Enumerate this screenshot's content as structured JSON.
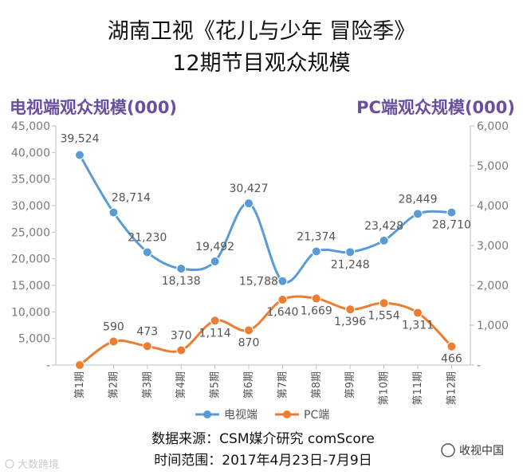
{
  "title_line1": "湖南卫视《花儿与少年 冒险季》",
  "title_line2": "12期节目观众规模",
  "source_line1": "数据来源：CSM媒介研究 comScore",
  "source_line2": "时间范围：2017年4月23日-7月9日",
  "watermark_right": "收视中国",
  "watermark_left": "大数跨境",
  "colors": {
    "tv": "#5b9bd5",
    "pc": "#ed7d31",
    "highlight": "#c00000",
    "axis_title": "#6b4f9e",
    "axis": "#bfbfbf"
  },
  "chart_data": {
    "type": "line",
    "categories": [
      "第1期",
      "第2期",
      "第3期",
      "第4期",
      "第5期",
      "第6期",
      "第7期",
      "第8期",
      "第9期",
      "第10期",
      "第11期",
      "第12期"
    ],
    "series": [
      {
        "name": "电视端",
        "axis": "left",
        "values": [
          39524,
          28714,
          21230,
          18138,
          19492,
          30427,
          15788,
          21374,
          21248,
          23428,
          28449,
          28710
        ],
        "labels": [
          "39,524",
          "28,714",
          "21,230",
          "18,138",
          "19,492",
          "30,427",
          "15,788",
          "21,374",
          "21,248",
          "23,428",
          "28,449",
          "28,710"
        ]
      },
      {
        "name": "PC端",
        "axis": "right",
        "values": [
          0,
          590,
          473,
          370,
          1114,
          870,
          1640,
          1669,
          1396,
          1554,
          1311,
          466
        ],
        "labels": [
          "",
          "590",
          "473",
          "370",
          "1,114",
          "870",
          "1,640",
          "1,669",
          "1,396",
          "1,554",
          "1,311",
          "466"
        ]
      }
    ],
    "y_left": {
      "label": "电视端观众规模(000)",
      "range": [
        0,
        45000
      ],
      "ticks": [
        "-",
        "5,000",
        "10,000",
        "15,000",
        "20,000",
        "25,000",
        "30,000",
        "35,000",
        "40,000",
        "45,000"
      ]
    },
    "y_right": {
      "label": "PC端观众规模(000)",
      "range": [
        0,
        6000
      ],
      "ticks": [
        "-",
        "1,000",
        "2,000",
        "3,000",
        "4,000",
        "5,000",
        "6,000"
      ]
    },
    "highlighted_labels": [
      "39,524",
      "1,669"
    ],
    "legend_position": "bottom",
    "grid": false
  }
}
